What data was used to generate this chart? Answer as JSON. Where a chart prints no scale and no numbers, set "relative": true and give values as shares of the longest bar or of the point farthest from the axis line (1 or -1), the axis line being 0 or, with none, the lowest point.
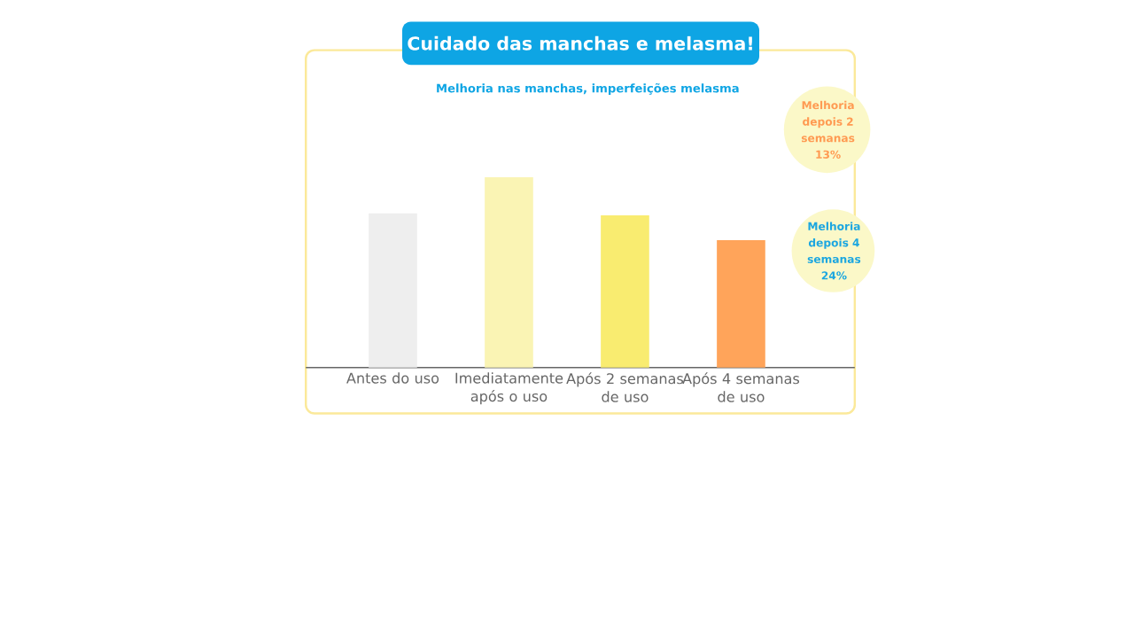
{
  "chart_data": {
    "type": "bar",
    "relative": true,
    "title": "Cuidado das manchas e melasma!",
    "subtitle": "Melhoria nas manchas, imperfeições melasma",
    "categories": [
      "Antes do uso",
      "Imediatamente após o uso",
      "Após 2 semanas de uso",
      "Após 4 semanas de uso"
    ],
    "values": [
      0.81,
      1,
      0.8,
      0.67
    ],
    "colors": [
      "#eeeeee",
      "#faf4b4",
      "#f9ec70",
      "#ffa45a"
    ],
    "annotations": [
      "Melhoria depois 2 semanas 13%",
      "Melhoria depois 4 semanas 24%"
    ]
  }
}
